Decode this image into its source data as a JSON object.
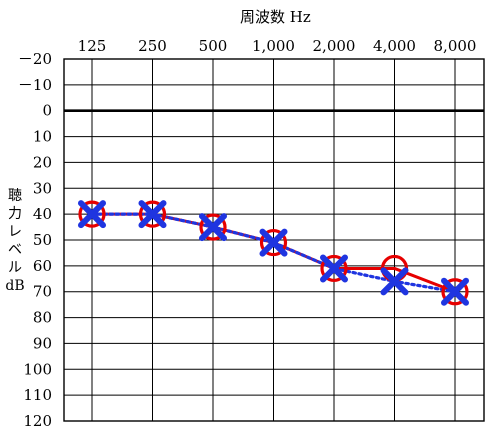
{
  "chart_data": {
    "type": "line",
    "xlabel": "周波数 Hz",
    "ylabel": [
      "聴",
      "力",
      "レ",
      "ベ",
      "ル",
      "dB"
    ],
    "x_ticks": [
      "125",
      "250",
      "500",
      "1,000",
      "2,000",
      "4,000",
      "8,000"
    ],
    "y_ticks": [
      "－20",
      "－10",
      "0",
      "10",
      "20",
      "30",
      "40",
      "50",
      "60",
      "70",
      "80",
      "90",
      "100",
      "110",
      "120"
    ],
    "ylim": [
      -20,
      120
    ],
    "y_inverted": true,
    "grid": true,
    "series": [
      {
        "marker": "circle",
        "color": "#e60000",
        "line": "solid",
        "values": [
          40,
          40,
          45,
          51,
          61,
          61,
          70
        ]
      },
      {
        "marker": "cross",
        "color": "#1f35e0",
        "line": "dotted",
        "values": [
          40,
          40,
          45,
          51,
          61,
          66,
          70
        ]
      }
    ]
  }
}
